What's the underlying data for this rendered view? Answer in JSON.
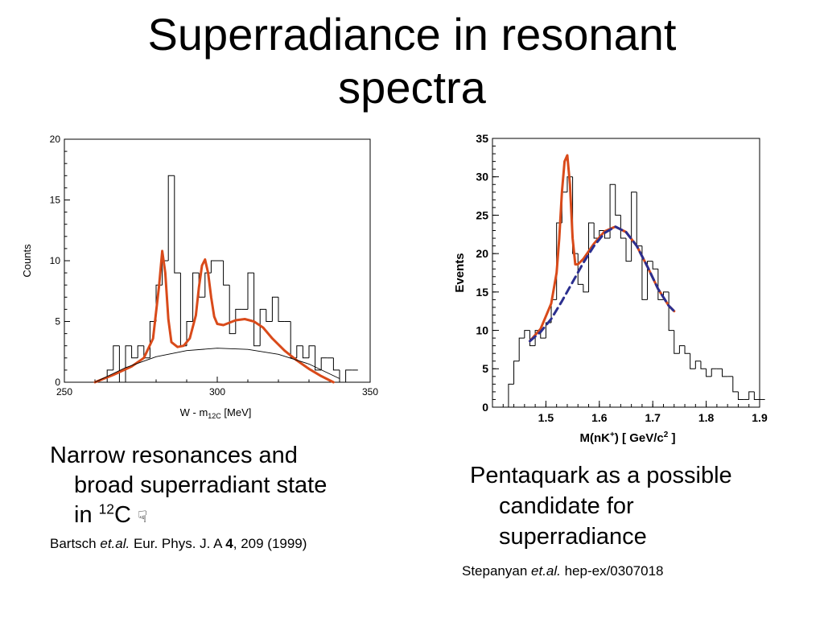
{
  "slide": {
    "title_line1": "Superradiance in resonant",
    "title_line2": "spectra"
  },
  "captions": {
    "left": {
      "line1": "Narrow resonances and",
      "line2": "broad superradiant  state",
      "line3_prefix": "in ",
      "line3_sup": "12",
      "line3_suffix": "C ",
      "icon": "pointing-hand-icon",
      "icon_glyph": "☟"
    },
    "right": {
      "line1": "Pentaquark as a possible",
      "line2": "candidate for",
      "line3": "superradiance"
    }
  },
  "references": {
    "left": {
      "author": "Bartsch ",
      "etal": "et.al.",
      "journal": " Eur. Phys. J. A ",
      "volume": "4",
      "rest": ", 209 (1999)"
    },
    "right": {
      "author": "Stepanyan ",
      "etal": "et.al.",
      "rest": " hep-ex/0307018"
    }
  },
  "chart_data": [
    {
      "type": "histogram",
      "xlabel_main": "W - m",
      "xlabel_sub": "12C",
      "xlabel_unit": "[MeV]",
      "ylabel": "Counts",
      "xlim": [
        250,
        350
      ],
      "ylim": [
        0,
        20
      ],
      "xticks": [
        250,
        300,
        350
      ],
      "yticks": [
        0,
        5,
        10,
        15,
        20
      ],
      "bin_width": 2,
      "bins_x": [
        260,
        262,
        264,
        266,
        268,
        270,
        272,
        274,
        276,
        278,
        280,
        282,
        284,
        286,
        288,
        290,
        292,
        294,
        296,
        298,
        300,
        302,
        304,
        306,
        308,
        310,
        312,
        314,
        316,
        318,
        320,
        322,
        324,
        326,
        328,
        330,
        332,
        334,
        336,
        338,
        340,
        342,
        344
      ],
      "counts": [
        0,
        0,
        1,
        3,
        0,
        3,
        2,
        3,
        2,
        5,
        8,
        10,
        17,
        9,
        3,
        5,
        9,
        7,
        9,
        10,
        10,
        8,
        4,
        6,
        6,
        9,
        3,
        6,
        5,
        7,
        5,
        5,
        2,
        3,
        2,
        3,
        1,
        2,
        2,
        1,
        0,
        1,
        1
      ],
      "fits": [
        {
          "name": "fit",
          "color": "#d94a1a",
          "x": [
            260,
            266,
            272,
            276,
            279,
            281,
            282,
            283,
            284,
            285,
            287,
            289,
            291,
            293,
            294,
            295,
            296,
            297,
            298,
            299,
            300,
            302,
            304,
            306,
            309,
            312,
            315,
            318,
            322,
            326,
            330,
            334,
            338
          ],
          "y": [
            0,
            0.6,
            1.3,
            2.0,
            3.6,
            8.0,
            10.8,
            9.0,
            5.2,
            3.3,
            2.9,
            3.0,
            3.6,
            5.5,
            7.8,
            9.6,
            10.1,
            9.0,
            7.0,
            5.4,
            4.8,
            4.7,
            4.9,
            5.1,
            5.2,
            5.0,
            4.5,
            3.6,
            2.6,
            1.8,
            1.1,
            0.5,
            0
          ]
        },
        {
          "name": "background",
          "color": "#000000",
          "x": [
            260,
            270,
            280,
            290,
            300,
            310,
            320,
            330,
            340
          ],
          "y": [
            0,
            1.2,
            2.1,
            2.6,
            2.8,
            2.7,
            2.3,
            1.5,
            0.3
          ]
        }
      ]
    },
    {
      "type": "histogram",
      "xlabel_prefix": "M(nK",
      "xlabel_sup": "+",
      "xlabel_mid": ") [ GeV/c",
      "xlabel_sup2": "2",
      "xlabel_suffix": " ]",
      "ylabel": "Events",
      "xlim": [
        1.4,
        1.9
      ],
      "ylim": [
        0,
        35
      ],
      "xticks": [
        "1.5",
        "1.6",
        "1.7",
        "1.8",
        "1.9"
      ],
      "yticks": [
        0,
        5,
        10,
        15,
        20,
        25,
        30,
        35
      ],
      "bin_width": 0.01,
      "bins_x": [
        1.43,
        1.44,
        1.45,
        1.46,
        1.47,
        1.48,
        1.49,
        1.5,
        1.51,
        1.52,
        1.53,
        1.54,
        1.55,
        1.56,
        1.57,
        1.58,
        1.59,
        1.6,
        1.61,
        1.62,
        1.63,
        1.64,
        1.65,
        1.66,
        1.67,
        1.68,
        1.69,
        1.7,
        1.71,
        1.72,
        1.73,
        1.74,
        1.75,
        1.76,
        1.77,
        1.78,
        1.79,
        1.8,
        1.81,
        1.82,
        1.83,
        1.84,
        1.85,
        1.86,
        1.87,
        1.88,
        1.89,
        1.9
      ],
      "counts": [
        3,
        6,
        9,
        10,
        8,
        10,
        9,
        11,
        14,
        24,
        28,
        30,
        20,
        16,
        15,
        24,
        22,
        23,
        22,
        29,
        25,
        22,
        19,
        28,
        21,
        14,
        19,
        18,
        14,
        15,
        10,
        7,
        8,
        7,
        5,
        6,
        5,
        4,
        5,
        5,
        4,
        4,
        2,
        1,
        1,
        2,
        1,
        1
      ],
      "fits": [
        {
          "name": "peak-fit",
          "color": "#d94a1a",
          "dashed": false,
          "x": [
            1.47,
            1.49,
            1.51,
            1.52,
            1.525,
            1.53,
            1.535,
            1.54,
            1.545,
            1.55,
            1.555,
            1.56,
            1.57,
            1.59,
            1.61,
            1.63,
            1.65,
            1.67,
            1.69,
            1.71,
            1.73,
            1.74
          ],
          "y": [
            8.6,
            10.2,
            13.5,
            17.5,
            22.0,
            28.0,
            32.0,
            32.8,
            29.0,
            22.0,
            18.6,
            18.6,
            19.3,
            21.3,
            22.9,
            23.5,
            22.8,
            21.0,
            18.3,
            15.4,
            13.2,
            12.5
          ]
        },
        {
          "name": "background-fit",
          "color": "#2b2f8f",
          "dashed": true,
          "x": [
            1.47,
            1.49,
            1.51,
            1.53,
            1.55,
            1.57,
            1.59,
            1.61,
            1.63,
            1.65,
            1.67,
            1.69,
            1.71,
            1.73,
            1.74
          ],
          "y": [
            8.6,
            9.8,
            11.5,
            13.8,
            16.3,
            18.8,
            21.0,
            22.7,
            23.5,
            22.8,
            21.0,
            18.3,
            15.4,
            13.2,
            12.5
          ]
        }
      ]
    }
  ]
}
